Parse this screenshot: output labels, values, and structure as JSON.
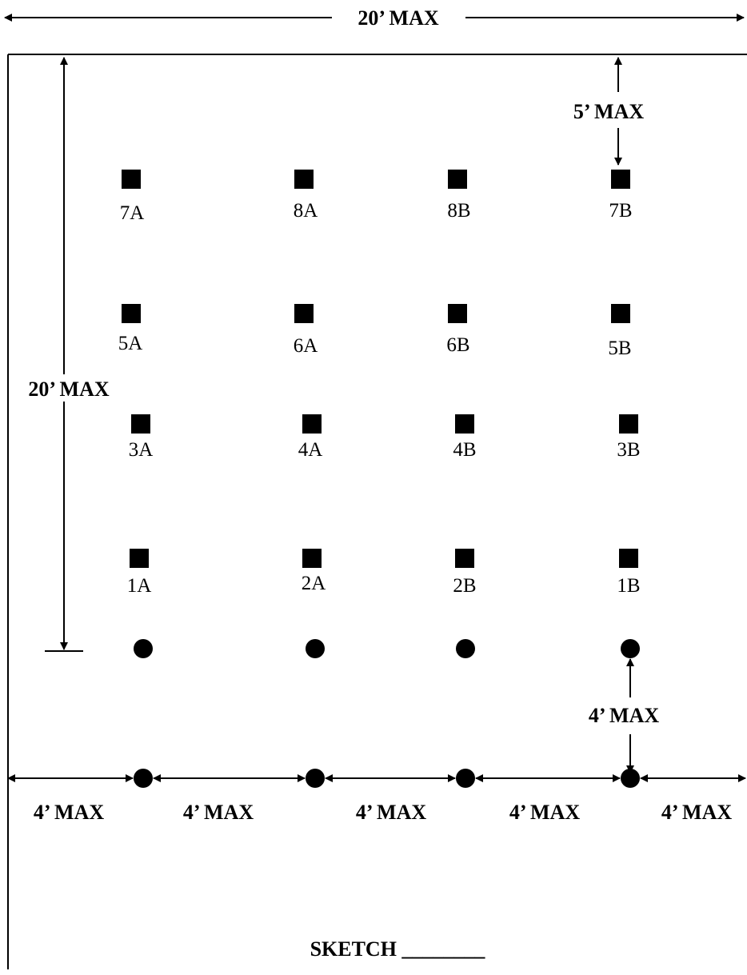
{
  "dimensions": {
    "top_width": "20’ MAX",
    "left_height": "20’ MAX",
    "top_clearance": "5’ MAX",
    "stake_offset": "4’ MAX",
    "baseline_spacing": [
      "4’ MAX",
      "4’ MAX",
      "4’ MAX",
      "4’ MAX",
      "4’ MAX"
    ]
  },
  "sample_points": {
    "row_7_8": [
      "7A",
      "8A",
      "8B",
      "7B"
    ],
    "row_5_6": [
      "5A",
      "6A",
      "6B",
      "5B"
    ],
    "row_3_4": [
      "3A",
      "4A",
      "4B",
      "3B"
    ],
    "row_1_2": [
      "1A",
      "2A",
      "2B",
      "1B"
    ]
  },
  "sketch_label": "SKETCH ________",
  "colors": {
    "ink": "#000000",
    "paper": "#ffffff"
  }
}
